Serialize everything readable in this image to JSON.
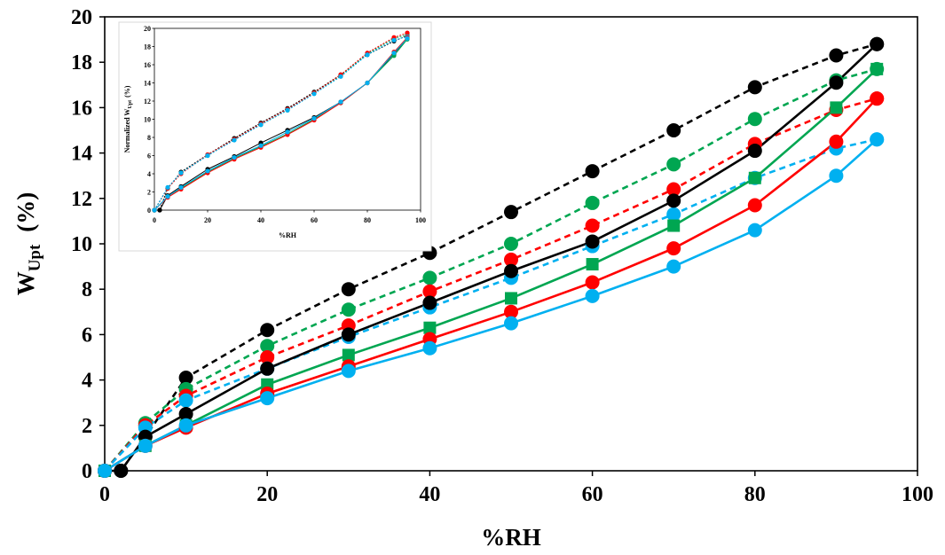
{
  "chart_data": [
    {
      "id": "main",
      "type": "line",
      "xlabel": "%RH",
      "ylabel": {
        "main": "W",
        "sub": "Upt",
        "unit": "(%)"
      },
      "xlim": [
        0,
        100
      ],
      "ylim": [
        0,
        20
      ],
      "xticks": [
        0,
        20,
        40,
        60,
        80,
        100
      ],
      "yticks": [
        0,
        2,
        4,
        6,
        8,
        10,
        12,
        14,
        16,
        18,
        20
      ],
      "grid": false,
      "series": [
        {
          "color": "#000000",
          "style": "dashed",
          "marker": "circle",
          "x": [
            0,
            2,
            5,
            10,
            20,
            30,
            40,
            50,
            60,
            70,
            80,
            90,
            95
          ],
          "y": [
            0,
            0,
            1.5,
            4.1,
            6.2,
            8.0,
            9.6,
            11.4,
            13.2,
            15.0,
            16.9,
            18.3,
            18.8
          ]
        },
        {
          "color": "#00a651",
          "style": "dashed",
          "marker": "circle",
          "x": [
            0,
            5,
            10,
            20,
            30,
            40,
            50,
            60,
            70,
            80,
            90,
            95
          ],
          "y": [
            0,
            2.1,
            3.6,
            5.5,
            7.1,
            8.5,
            10.0,
            11.8,
            13.5,
            15.5,
            17.2,
            17.7
          ]
        },
        {
          "color": "#ff0000",
          "style": "dashed",
          "marker": "circle",
          "x": [
            0,
            5,
            10,
            20,
            30,
            40,
            50,
            60,
            70,
            80,
            90,
            95
          ],
          "y": [
            0,
            2.0,
            3.3,
            5.0,
            6.4,
            7.9,
            9.3,
            10.8,
            12.4,
            14.4,
            15.9,
            16.4
          ]
        },
        {
          "color": "#00b0f0",
          "style": "dashed",
          "marker": "circle",
          "x": [
            0,
            5,
            10,
            20,
            30,
            40,
            50,
            60,
            70,
            80,
            90,
            95
          ],
          "y": [
            0,
            1.9,
            3.1,
            4.5,
            5.9,
            7.2,
            8.5,
            9.9,
            11.3,
            12.9,
            14.2,
            14.6
          ]
        },
        {
          "color": "#000000",
          "style": "solid",
          "marker": "circle",
          "x": [
            0,
            2,
            5,
            10,
            20,
            30,
            40,
            50,
            60,
            70,
            80,
            90,
            95
          ],
          "y": [
            0,
            0,
            1.5,
            2.5,
            4.5,
            6.0,
            7.4,
            8.8,
            10.1,
            11.9,
            14.1,
            17.1,
            18.8
          ]
        },
        {
          "color": "#00a651",
          "style": "solid",
          "marker": "square",
          "x": [
            0,
            5,
            10,
            20,
            30,
            40,
            50,
            60,
            70,
            80,
            90,
            95
          ],
          "y": [
            0,
            1.1,
            2.0,
            3.8,
            5.1,
            6.3,
            7.6,
            9.1,
            10.8,
            12.9,
            16.0,
            17.7
          ]
        },
        {
          "color": "#ff0000",
          "style": "solid",
          "marker": "circle",
          "x": [
            0,
            5,
            10,
            20,
            30,
            40,
            50,
            60,
            70,
            80,
            90,
            95
          ],
          "y": [
            0,
            1.1,
            1.9,
            3.4,
            4.6,
            5.8,
            7.0,
            8.3,
            9.8,
            11.7,
            14.5,
            16.4
          ]
        },
        {
          "color": "#00b0f0",
          "style": "solid",
          "marker": "circle",
          "x": [
            0,
            5,
            10,
            20,
            30,
            40,
            50,
            60,
            70,
            80,
            90,
            95
          ],
          "y": [
            0,
            1.1,
            2.0,
            3.2,
            4.4,
            5.4,
            6.5,
            7.7,
            9.0,
            10.6,
            13.0,
            14.6
          ]
        }
      ]
    },
    {
      "id": "inset",
      "type": "line",
      "xlabel": "%RH",
      "ylabel": {
        "main": "Normalized W",
        "sub": "Upt",
        "unit": "(%)"
      },
      "xlim": [
        0,
        100
      ],
      "ylim": [
        0,
        20
      ],
      "xticks": [
        0,
        20,
        40,
        60,
        80,
        100
      ],
      "yticks": [
        0,
        2,
        4,
        6,
        8,
        10,
        12,
        14,
        16,
        18,
        20
      ],
      "grid": false,
      "series": [
        {
          "color": "#000000",
          "style": "dashed",
          "marker": "circle",
          "x": [
            0,
            2,
            5,
            10,
            20,
            30,
            40,
            50,
            60,
            70,
            80,
            90,
            95
          ],
          "y": [
            0,
            0,
            2.4,
            4.2,
            6.1,
            7.9,
            9.6,
            11.2,
            13.0,
            14.9,
            17.1,
            18.6,
            19.2
          ]
        },
        {
          "color": "#00a651",
          "style": "dashed",
          "marker": "circle",
          "x": [
            0,
            5,
            10,
            20,
            30,
            40,
            50,
            60,
            70,
            80,
            90,
            95
          ],
          "y": [
            0,
            2.4,
            4.1,
            6.0,
            7.8,
            9.4,
            11.0,
            12.9,
            14.8,
            17.2,
            18.9,
            19.3
          ]
        },
        {
          "color": "#ff0000",
          "style": "dashed",
          "marker": "circle",
          "x": [
            0,
            5,
            10,
            20,
            30,
            40,
            50,
            60,
            70,
            80,
            90,
            95
          ],
          "y": [
            0,
            2.4,
            4.0,
            6.1,
            7.8,
            9.5,
            11.1,
            12.9,
            14.9,
            17.3,
            19.0,
            19.5
          ]
        },
        {
          "color": "#00b0f0",
          "style": "dashed",
          "marker": "circle",
          "x": [
            0,
            5,
            10,
            20,
            30,
            40,
            50,
            60,
            70,
            80,
            90,
            95
          ],
          "y": [
            0,
            2.5,
            4.1,
            6.0,
            7.7,
            9.4,
            11.0,
            12.8,
            14.7,
            17.1,
            18.7,
            19.1
          ]
        },
        {
          "color": "#000000",
          "style": "solid",
          "marker": "circle",
          "x": [
            0,
            2,
            5,
            10,
            20,
            30,
            40,
            50,
            60,
            70,
            80,
            90,
            95
          ],
          "y": [
            0,
            0,
            1.6,
            2.6,
            4.5,
            5.9,
            7.4,
            8.8,
            10.2,
            11.9,
            14.0,
            17.2,
            18.9
          ]
        },
        {
          "color": "#00a651",
          "style": "solid",
          "marker": "circle",
          "x": [
            0,
            5,
            10,
            20,
            30,
            40,
            50,
            60,
            70,
            80,
            90,
            95
          ],
          "y": [
            0,
            1.5,
            2.4,
            4.2,
            5.7,
            7.0,
            8.4,
            10.0,
            11.8,
            14.0,
            17.0,
            18.8
          ]
        },
        {
          "color": "#ff0000",
          "style": "solid",
          "marker": "circle",
          "x": [
            0,
            5,
            10,
            20,
            30,
            40,
            50,
            60,
            70,
            80,
            90,
            95
          ],
          "y": [
            0,
            1.4,
            2.3,
            4.1,
            5.6,
            6.9,
            8.3,
            9.9,
            11.8,
            14.0,
            17.4,
            19.0
          ]
        },
        {
          "color": "#00b0f0",
          "style": "solid",
          "marker": "circle",
          "x": [
            0,
            5,
            10,
            20,
            30,
            40,
            50,
            60,
            70,
            80,
            90,
            95
          ],
          "y": [
            0,
            1.5,
            2.5,
            4.3,
            5.8,
            7.1,
            8.6,
            10.1,
            11.9,
            14.0,
            17.3,
            18.9
          ]
        }
      ]
    }
  ]
}
